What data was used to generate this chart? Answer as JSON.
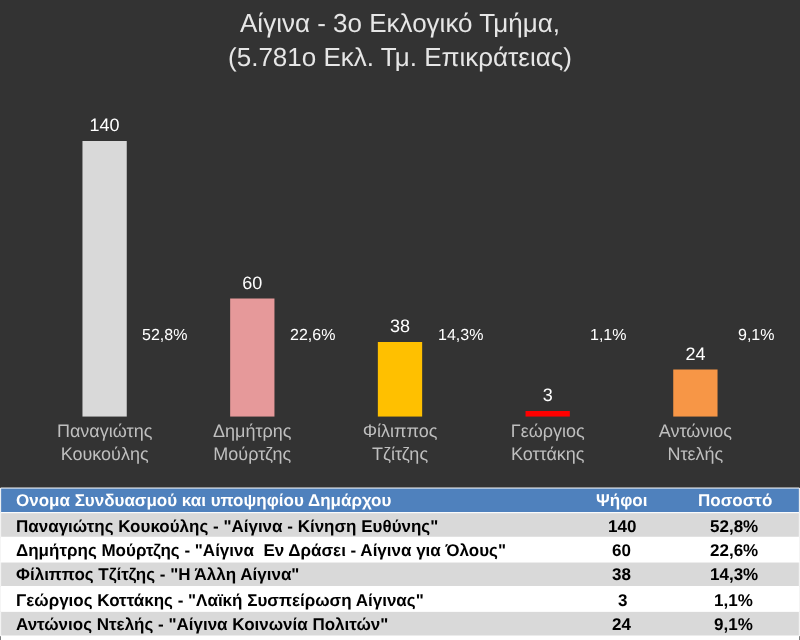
{
  "chart_data": {
    "type": "bar",
    "title": "Αίγινα - 3ο Εκλογικό Τμήμα,\n(5.781ο Εκλ. Τμ. Επικράτειας)",
    "categories": [
      "Παναγιώτης\nΚουκούλης",
      "Δημήτρης\nΜούρτζης",
      "Φίλιππος\nΤζίτζης",
      "Γεώργιος\nΚοττάκης",
      "Αντώνιος\nΝτελής"
    ],
    "values": [
      140,
      60,
      38,
      3,
      24
    ],
    "colors": [
      "#d9d9d9",
      "#e6999a",
      "#ffc000",
      "#ff0000",
      "#f79646"
    ],
    "data_labels": true,
    "tick_labels": "x",
    "annotations": [
      "52,8%",
      "22,6%",
      "14,3%",
      "1,1%",
      "9,1%",
      "Ονομα Συνδυασμού και υποψηφίου Δημάρχου",
      "Ψήφοι",
      "Ποσοστό",
      "Παναγιώτης Κουκούλης - \"Αίγινα - Κίνηση Ευθύνης\"",
      "140",
      "52,8%",
      "Δημήτρης Μούρτζης - \"Αίγινα  Εν Δράσει - Αίγινα για Όλους\"",
      "60",
      "22,6%",
      "Φίλιππος Τζίτζης - \"Η Άλλη Αίγινα\"",
      "38",
      "14,3%",
      "Γεώργιος Κοττάκης - \"Λαϊκή Συσπείρωση Αίγινας\"",
      "3",
      "1,1%",
      "Αντώνιος Ντελής - \"Αίγινα Κοινωνία Πολιτών\"",
      "24",
      "9,1%"
    ]
  }
}
